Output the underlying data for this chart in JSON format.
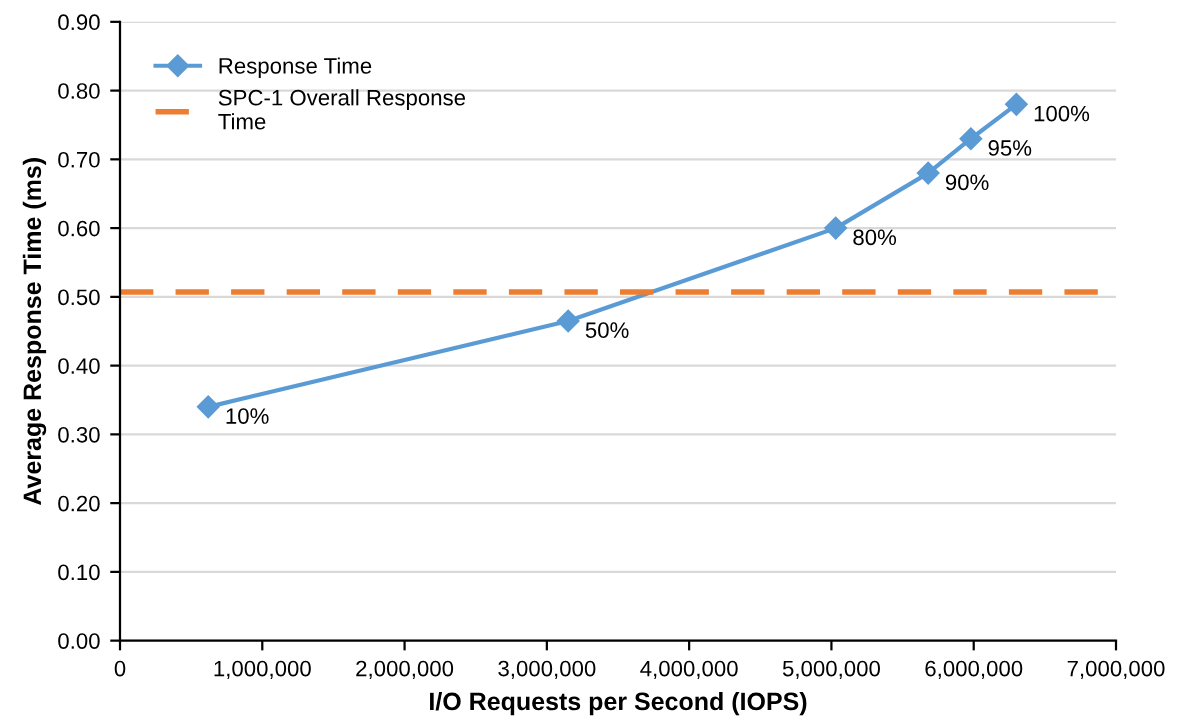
{
  "chart_data": {
    "type": "line",
    "xlabel": "I/O Requests per Second (IOPS)",
    "ylabel": "Average Response Time (ms)",
    "x": [
      620000,
      3150000,
      5030000,
      5680000,
      5980000,
      6300000
    ],
    "series": [
      {
        "name": "Response Time",
        "color": "#5b9bd5",
        "values": [
          0.34,
          0.465,
          0.6,
          0.68,
          0.73,
          0.78
        ]
      }
    ],
    "annotations": [
      {
        "text": "10%",
        "x": 620000,
        "y": 0.34
      },
      {
        "text": "50%",
        "x": 3150000,
        "y": 0.465
      },
      {
        "text": "80%",
        "x": 5030000,
        "y": 0.6
      },
      {
        "text": "90%",
        "x": 5680000,
        "y": 0.68
      },
      {
        "text": "95%",
        "x": 5980000,
        "y": 0.73
      },
      {
        "text": "100%",
        "x": 6300000,
        "y": 0.78
      }
    ],
    "ref_lines": [
      {
        "axis": "y",
        "value": 0.507,
        "label": "SPC-1 Overall Response\nTime",
        "color": "#ed7d31",
        "line_style": "dashed"
      }
    ],
    "xlim": [
      0,
      7000000
    ],
    "xticks": [
      {
        "value": 0,
        "label": "0"
      },
      {
        "value": 1000000,
        "label": "1,000,000"
      },
      {
        "value": 2000000,
        "label": "2,000,000"
      },
      {
        "value": 3000000,
        "label": "3,000,000"
      },
      {
        "value": 4000000,
        "label": "4,000,000"
      },
      {
        "value": 5000000,
        "label": "5,000,000"
      },
      {
        "value": 6000000,
        "label": "6,000,000"
      },
      {
        "value": 7000000,
        "label": "7,000,000"
      }
    ],
    "ylim": [
      0,
      0.9
    ],
    "yticks": [
      {
        "value": 0,
        "label": "0.00"
      },
      {
        "value": 0.1,
        "label": "0.10"
      },
      {
        "value": 0.2,
        "label": "0.20"
      },
      {
        "value": 0.3,
        "label": "0.30"
      },
      {
        "value": 0.4,
        "label": "0.40"
      },
      {
        "value": 0.5,
        "label": "0.50"
      },
      {
        "value": 0.6,
        "label": "0.60"
      },
      {
        "value": 0.7,
        "label": "0.70"
      },
      {
        "value": 0.8,
        "label": "0.80"
      },
      {
        "value": 0.9,
        "label": "0.90"
      }
    ],
    "grid": "y",
    "legend": "top left",
    "marker": "diamond",
    "line_style": "solid"
  }
}
